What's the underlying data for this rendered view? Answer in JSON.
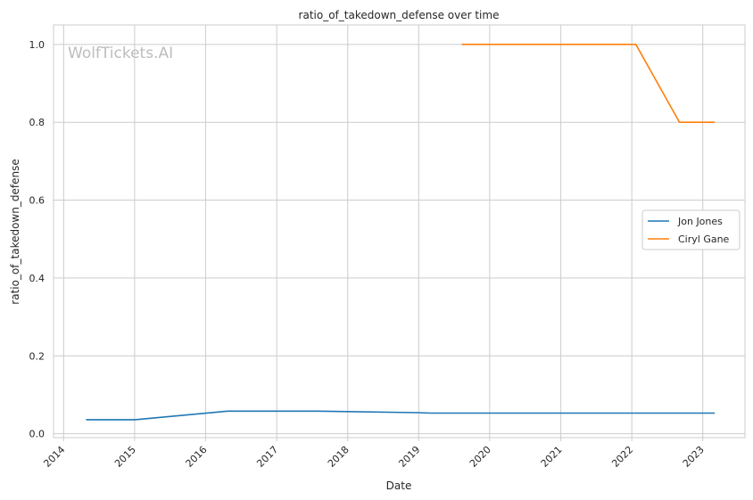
{
  "chart_data": {
    "type": "line",
    "title": "ratio_of_takedown_defense over time",
    "xlabel": "Date",
    "ylabel": "ratio_of_takedown_defense",
    "watermark": "WolfTickets.AI",
    "xlim": [
      "2013-11-10",
      "2023-08-06"
    ],
    "ylim": [
      -0.01,
      1.05
    ],
    "x_ticks": [
      "2014",
      "2015",
      "2016",
      "2017",
      "2018",
      "2019",
      "2020",
      "2021",
      "2022",
      "2023"
    ],
    "y_ticks": [
      "0.0",
      "0.2",
      "0.4",
      "0.6",
      "0.8",
      "1.0"
    ],
    "grid": true,
    "legend_position": "center-right",
    "series": [
      {
        "name": "Jon Jones",
        "color": "#1f77b4",
        "points": [
          {
            "x": "2014-04-26",
            "y": 0.036
          },
          {
            "x": "2015-01-03",
            "y": 0.036
          },
          {
            "x": "2016-04-23",
            "y": 0.058
          },
          {
            "x": "2017-07-29",
            "y": 0.058
          },
          {
            "x": "2018-12-29",
            "y": 0.054
          },
          {
            "x": "2019-03-02",
            "y": 0.053
          },
          {
            "x": "2023-03-04",
            "y": 0.053
          }
        ]
      },
      {
        "name": "Ciryl Gane",
        "color": "#ff7f0e",
        "points": [
          {
            "x": "2019-08-10",
            "y": 1.0
          },
          {
            "x": "2022-01-22",
            "y": 1.0
          },
          {
            "x": "2022-09-03",
            "y": 0.8
          },
          {
            "x": "2023-03-04",
            "y": 0.8
          }
        ]
      }
    ]
  }
}
